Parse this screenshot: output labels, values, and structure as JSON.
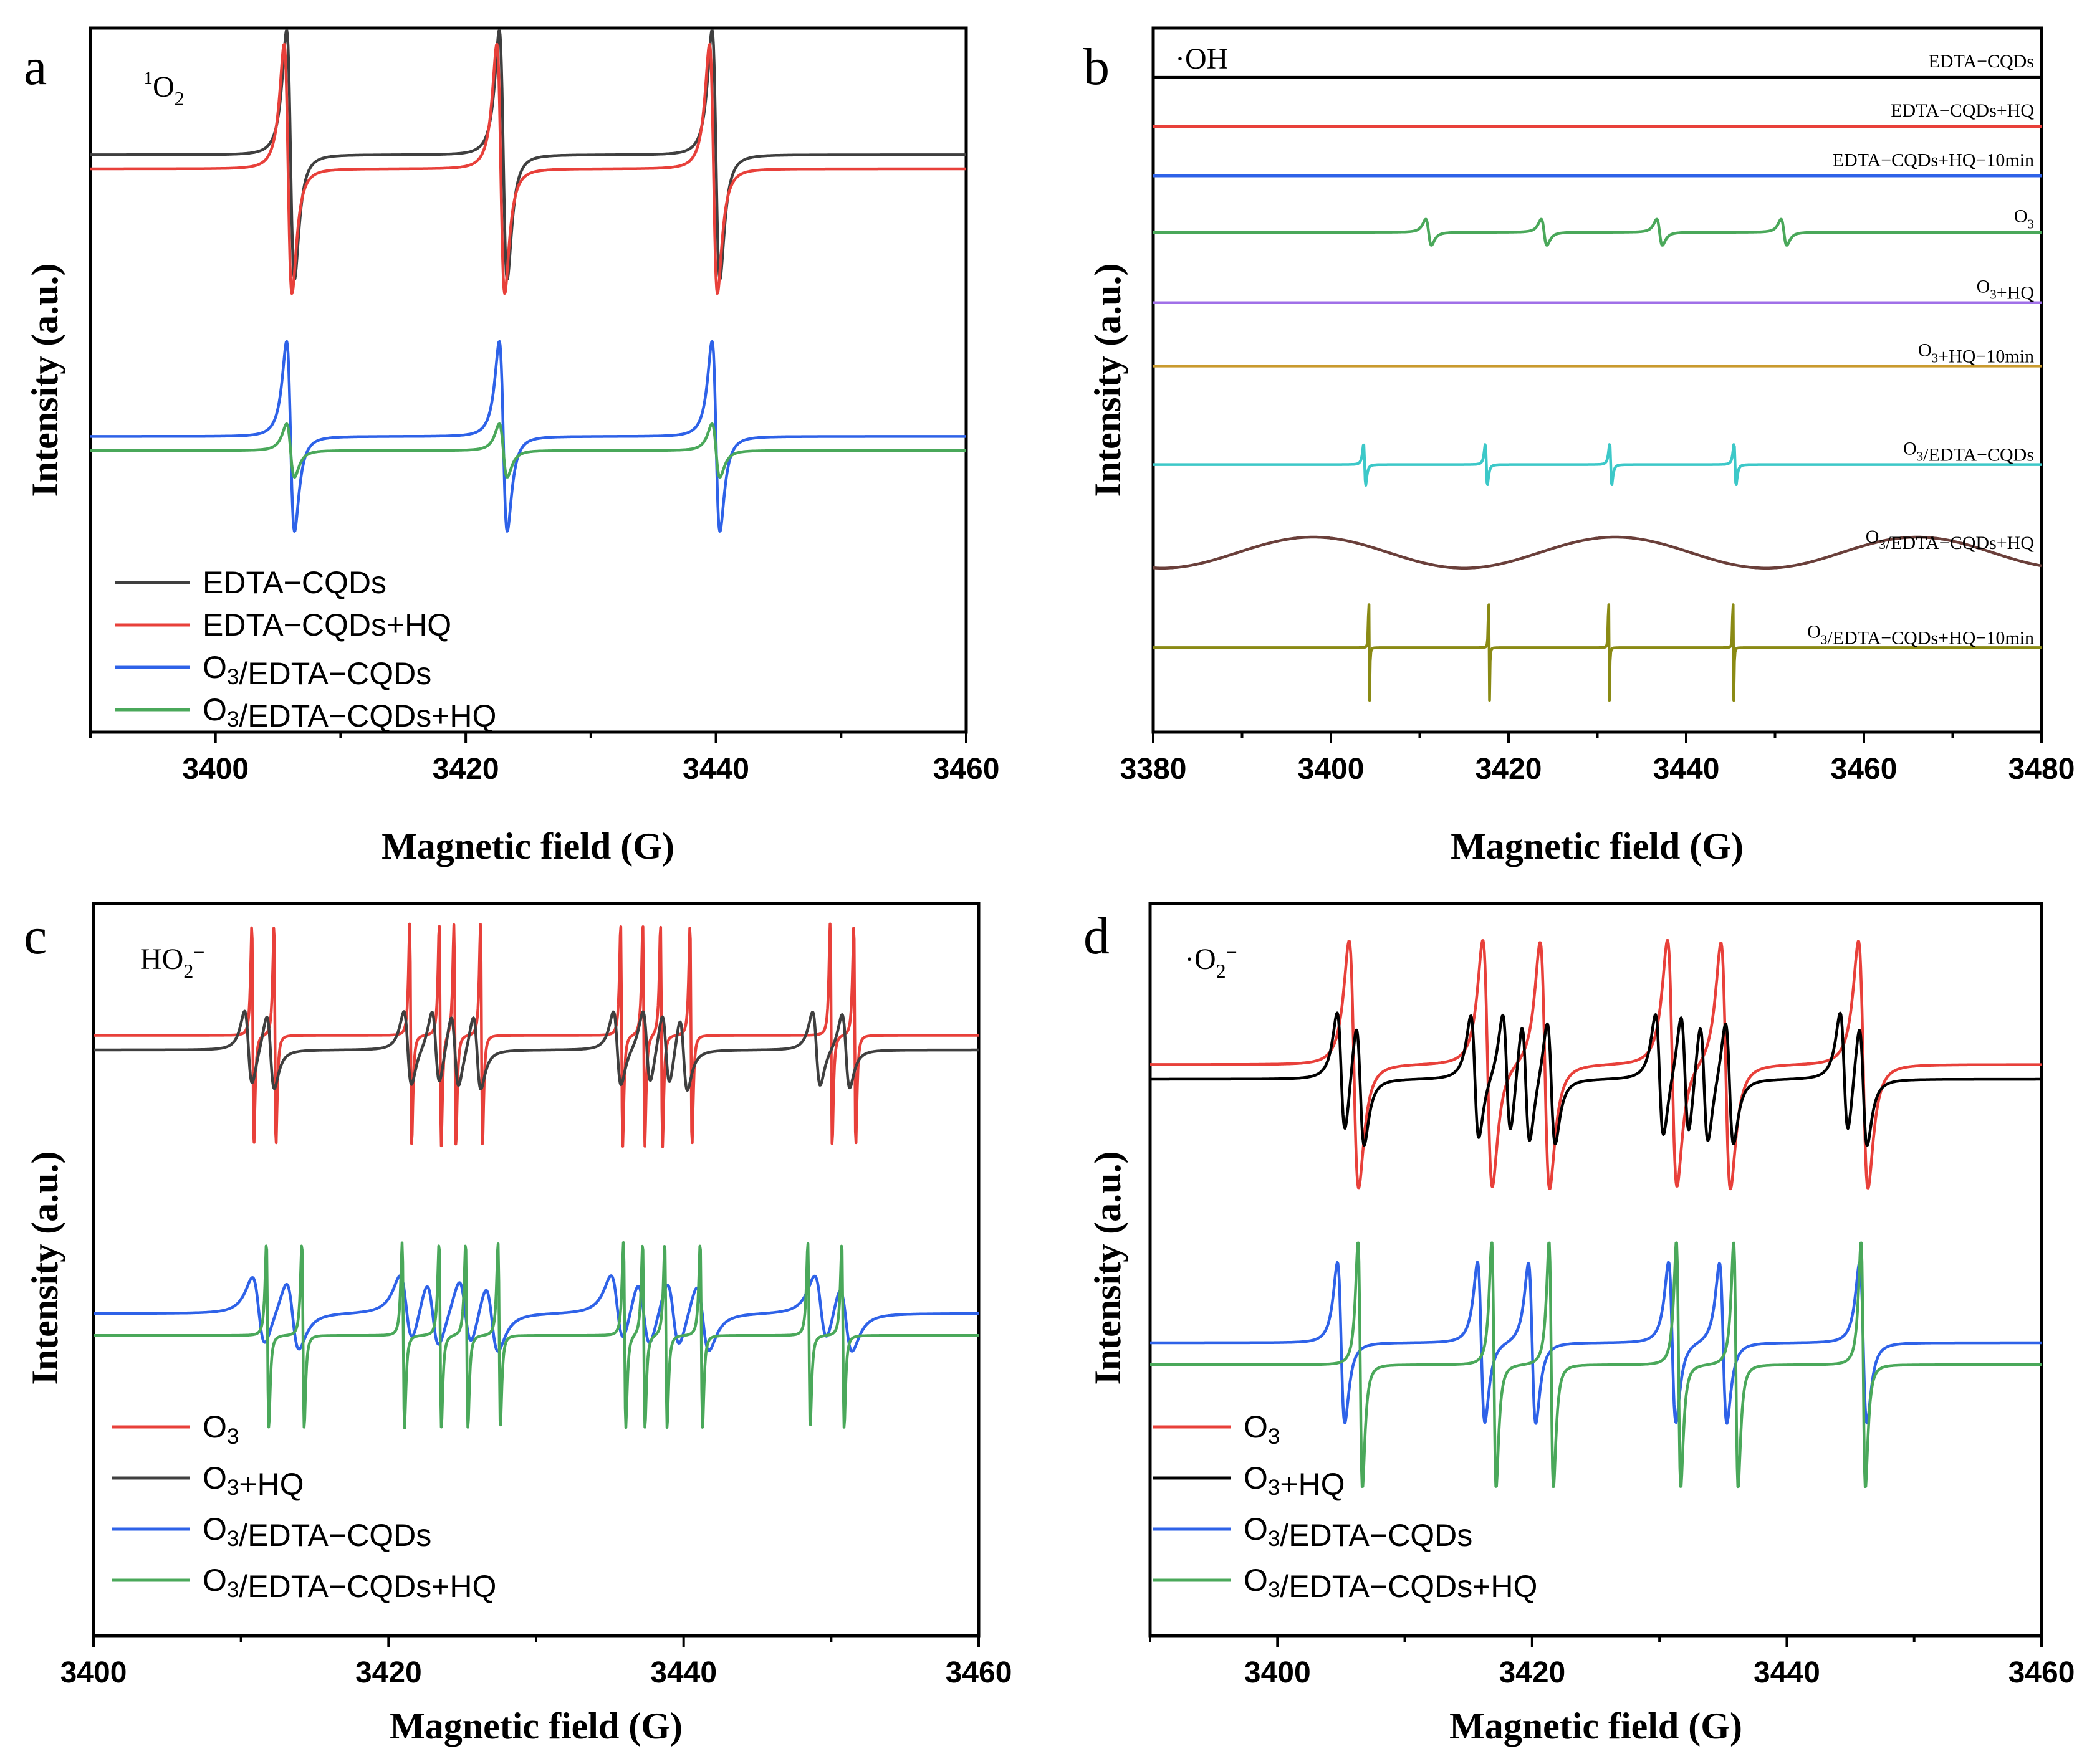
{
  "palette": {
    "black": "#3f3f3f",
    "red": "#e8403a",
    "blue": "#2e62e8",
    "green": "#4aa85a",
    "purple": "#a070e8",
    "gold": "#c99a2e",
    "cyan": "#3cc8c8",
    "brown": "#6a3f3a",
    "olive": "#8a8a14",
    "pureblack": "#000000"
  },
  "chart_data": [
    {
      "panel": "a",
      "type": "line",
      "species": "1O2",
      "xlabel": "Magnetic field (G)",
      "ylabel": "Intensity (a.u.)",
      "xlim": [
        3390,
        3460
      ],
      "xticks": [
        3400,
        3420,
        3440,
        3460
      ],
      "xtick_labels": [
        "3400",
        "3420",
        "3440",
        "3460"
      ],
      "series": [
        {
          "name": "EDTA−CQDs",
          "color": "black",
          "baseline": 0.82,
          "peaks": [
            3406.0,
            3423.0,
            3440.0
          ],
          "amp": 0.21,
          "width": 0.55
        },
        {
          "name": "EDTA−CQDs+HQ",
          "color": "red",
          "baseline": 0.8,
          "peaks": [
            3405.8,
            3422.8,
            3439.8
          ],
          "amp": 0.21,
          "width": 0.55
        },
        {
          "name": "O3/EDTA−CQDs",
          "color": "blue",
          "baseline": 0.42,
          "peaks": [
            3406.0,
            3423.0,
            3440.0
          ],
          "amp": 0.16,
          "width": 0.55
        },
        {
          "name": "O3/EDTA−CQDs+HQ",
          "color": "green",
          "baseline": 0.4,
          "peaks": [
            3406.0,
            3423.0,
            3440.0
          ],
          "amp": 0.045,
          "width": 0.55
        }
      ]
    },
    {
      "panel": "b",
      "type": "line",
      "species": "·OH",
      "xlabel": "Magnetic field (G)",
      "ylabel": "Intensity (a.u.)",
      "xlim": [
        3380,
        3480
      ],
      "xticks": [
        3380,
        3400,
        3420,
        3440,
        3460,
        3480
      ],
      "xtick_labels": [
        "3380",
        "3400",
        "3420",
        "3440",
        "3460",
        "3480"
      ],
      "series": [
        {
          "name": "EDTA−CQDs",
          "color": "pureblack",
          "baseline": 0.93,
          "peaks": [],
          "amp": 0,
          "width": 1
        },
        {
          "name": "EDTA−CQDs+HQ",
          "color": "red",
          "baseline": 0.86,
          "peaks": [],
          "amp": 0,
          "width": 1
        },
        {
          "name": "EDTA−CQDs+HQ−10min",
          "color": "blue",
          "baseline": 0.79,
          "peaks": [],
          "amp": 0,
          "width": 1
        },
        {
          "name": "O3",
          "color": "green",
          "baseline": 0.71,
          "peaks": [
            3411,
            3424,
            3437,
            3451
          ],
          "amp": 0.022,
          "width": 0.55
        },
        {
          "name": "O3+HQ",
          "color": "purple",
          "baseline": 0.61,
          "peaks": [],
          "amp": 0,
          "width": 1
        },
        {
          "name": "O3+HQ−10min",
          "color": "gold",
          "baseline": 0.52,
          "peaks": [],
          "amp": 0,
          "width": 1
        },
        {
          "name": "O3/EDTA−CQDs",
          "color": "cyan",
          "baseline": 0.38,
          "peaks": [
            3403.8,
            3417.5,
            3431.5,
            3445.5
          ],
          "amp": 0.035,
          "width": 0.2
        },
        {
          "name": "O3/EDTA−CQDs+HQ",
          "color": "brown",
          "baseline": 0.255,
          "peaks": [],
          "amp": 0,
          "width": 1,
          "wave": {
            "amp": 0.022,
            "period": 34,
            "phase": 3398
          }
        },
        {
          "name": "O3/EDTA−CQDs+HQ−10min",
          "color": "olive",
          "baseline": 0.12,
          "peaks": [
            3404.3,
            3417.8,
            3431.3,
            3445.3
          ],
          "amp": 0.11,
          "width": 0.06
        }
      ]
    },
    {
      "panel": "c",
      "type": "line",
      "species": "HO2−",
      "xlabel": "Magnetic field (G)",
      "ylabel": "Intensity (a.u.)",
      "xlim": [
        3400,
        3460
      ],
      "xticks": [
        3400,
        3420,
        3440,
        3460
      ],
      "xtick_labels": [
        "3400",
        "3420",
        "3440",
        "3460"
      ],
      "series": [
        {
          "name": "O3",
          "color": "red",
          "baseline": 0.82,
          "peaks": [
            3410.8,
            3412.3,
            3421.5,
            3423.5,
            3424.5,
            3426.3,
            3435.8,
            3437.3,
            3438.5,
            3440.5,
            3450.0,
            3451.6
          ],
          "amp": 0.18,
          "width": 0.12
        },
        {
          "name": "O3+HQ",
          "color": "black",
          "baseline": 0.8,
          "peaks": [
            3410.5,
            3412.0,
            3421.3,
            3423.2,
            3424.5,
            3426.0,
            3435.5,
            3437.5,
            3438.8,
            3440.0,
            3449.0,
            3451.0
          ],
          "amp": 0.06,
          "width": 0.45
        },
        {
          "name": "O3/EDTA−CQDs",
          "color": "blue",
          "baseline": 0.44,
          "peaks": [
            3411.2,
            3413.5,
            3421.2,
            3423.0,
            3425.2,
            3427.0,
            3435.5,
            3437.3,
            3439.3,
            3441.3,
            3449.3,
            3451.0
          ],
          "amp": 0.055,
          "width": 0.75
        },
        {
          "name": "O3/EDTA−CQDs+HQ",
          "color": "green",
          "baseline": 0.41,
          "peaks": [
            3411.8,
            3414.2,
            3421.0,
            3423.5,
            3425.3,
            3427.5,
            3436.0,
            3437.3,
            3438.8,
            3441.2,
            3448.5,
            3450.8
          ],
          "amp": 0.15,
          "width": 0.14
        }
      ]
    },
    {
      "panel": "d",
      "type": "line",
      "species": "·O2−",
      "xlabel": "Magnetic field (G)",
      "ylabel": "Intensity (a.u.)",
      "xlim": [
        3390,
        3460
      ],
      "xticks": [
        3400,
        3420,
        3440,
        3460
      ],
      "xtick_labels": [
        "3400",
        "3420",
        "3440",
        "3460"
      ],
      "series": [
        {
          "name": "O3",
          "color": "red",
          "baseline": 0.78,
          "peaks": [
            3406.0,
            3416.5,
            3421.0,
            3431.0,
            3435.2,
            3446.0
          ],
          "amp": 0.2,
          "width": 0.65
        },
        {
          "name": "O3+HQ",
          "color": "pureblack",
          "baseline": 0.76,
          "peaks": [
            3405.0,
            3406.5,
            3415.5,
            3418.0,
            3419.5,
            3421.5,
            3430.0,
            3432.0,
            3433.5,
            3435.5,
            3444.5,
            3446.0
          ],
          "amp": 0.1,
          "width": 0.55
        },
        {
          "name": "O3/EDTA−CQDs",
          "color": "blue",
          "baseline": 0.4,
          "peaks": [
            3405.0,
            3416.0,
            3420.0,
            3431.0,
            3435.0,
            3446.0
          ],
          "amp": 0.13,
          "width": 0.5
        },
        {
          "name": "O3/EDTA−CQDs+HQ",
          "color": "green",
          "baseline": 0.37,
          "peaks": [
            3406.5,
            3417.0,
            3421.5,
            3431.5,
            3436.0,
            3446.0
          ],
          "amp": 0.2,
          "width": 0.3
        }
      ]
    }
  ]
}
